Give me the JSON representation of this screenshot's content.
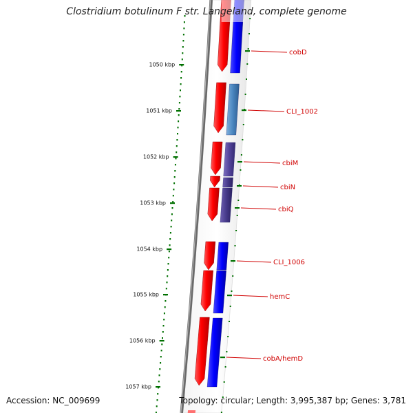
{
  "title": "Clostridium botulinum F str. Langeland, complete genome",
  "footer": {
    "accession": "Accession: NC_009699",
    "summary": "Topology: circular; Length: 3,995,387 bp; Genes: 3,781"
  },
  "ticks": [
    "1050 kbp",
    "1051 kbp",
    "1052 kbp",
    "1053 kbp",
    "1054 kbp",
    "1055 kbp",
    "1056 kbp",
    "1057 kbp"
  ],
  "genes": [
    {
      "label": "cobD",
      "reverse_color": "#0000ff"
    },
    {
      "label": "CLI_1002",
      "reverse_color": "#4a86c0"
    },
    {
      "label": "cbiM",
      "reverse_color": "#5c4a9e"
    },
    {
      "label": "cbiN",
      "reverse_color": "#4a3e8e"
    },
    {
      "label": "cbiQ",
      "reverse_color": "#463a8a"
    },
    {
      "label": "CLI_1006",
      "reverse_color": "#0000ff"
    },
    {
      "label": "hemC",
      "reverse_color": "#0000ff"
    },
    {
      "label": "cobA/hemD",
      "reverse_color": "#0000ff"
    }
  ],
  "colors": {
    "forward": "#ff0000",
    "label": "#d00000",
    "tick": "#007000",
    "backbone": "#777777"
  }
}
